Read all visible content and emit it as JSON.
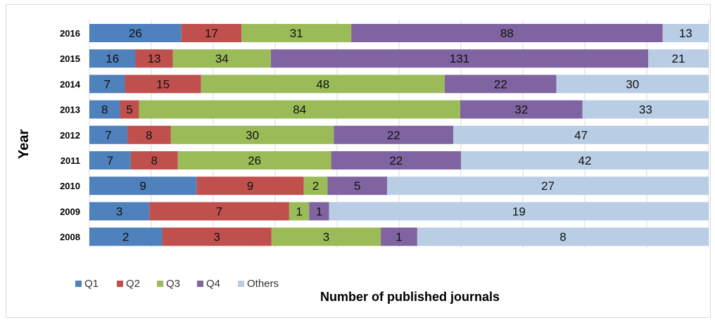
{
  "chart_data": {
    "type": "bar",
    "orientation": "horizontal",
    "stacked": true,
    "title": "",
    "xlabel": "Number of published journals",
    "ylabel": "Year",
    "categories": [
      "2016",
      "2015",
      "2014",
      "2013",
      "2012",
      "2011",
      "2010",
      "2009",
      "2008"
    ],
    "series": [
      {
        "name": "Q1",
        "color": "#4f81bd",
        "values": [
          26,
          16,
          7,
          8,
          7,
          7,
          9,
          3,
          2
        ]
      },
      {
        "name": "Q2",
        "color": "#c0504d",
        "values": [
          17,
          13,
          15,
          5,
          8,
          8,
          9,
          7,
          3
        ]
      },
      {
        "name": "Q3",
        "color": "#9bbb59",
        "values": [
          31,
          34,
          48,
          84,
          30,
          26,
          2,
          1,
          3
        ]
      },
      {
        "name": "Q4",
        "color": "#8064a2",
        "values": [
          88,
          131,
          22,
          32,
          22,
          22,
          5,
          1,
          1
        ]
      },
      {
        "name": "Others",
        "color": "#b9cde5",
        "values": [
          13,
          21,
          30,
          33,
          47,
          42,
          27,
          19,
          8
        ]
      }
    ],
    "percent_of_total": true,
    "grid": true,
    "legend_position": "bottom-left"
  }
}
